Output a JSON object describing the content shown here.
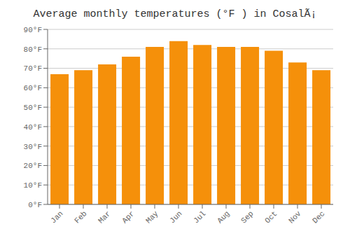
{
  "chart_data": {
    "type": "bar",
    "title": "Average monthly temperatures (°F ) in CosalÃ¡",
    "categories": [
      "Jan",
      "Feb",
      "Mar",
      "Apr",
      "May",
      "Jun",
      "Jul",
      "Aug",
      "Sep",
      "Oct",
      "Nov",
      "Dec"
    ],
    "values": [
      67,
      69,
      72,
      76,
      81,
      84,
      82,
      81,
      81,
      79,
      73,
      69
    ],
    "color": "#F5900A",
    "ylim": [
      0,
      90
    ],
    "yticks": [
      {
        "value": 0,
        "label": "0°F"
      },
      {
        "value": 10,
        "label": "10°F"
      },
      {
        "value": 20,
        "label": "20°F"
      },
      {
        "value": 30,
        "label": "30°F"
      },
      {
        "value": 40,
        "label": "40°F"
      },
      {
        "value": 50,
        "label": "50°F"
      },
      {
        "value": 60,
        "label": "60°F"
      },
      {
        "value": 70,
        "label": "70°F"
      },
      {
        "value": 80,
        "label": "80°F"
      },
      {
        "value": 90,
        "label": "90°F"
      }
    ],
    "grid": true
  }
}
